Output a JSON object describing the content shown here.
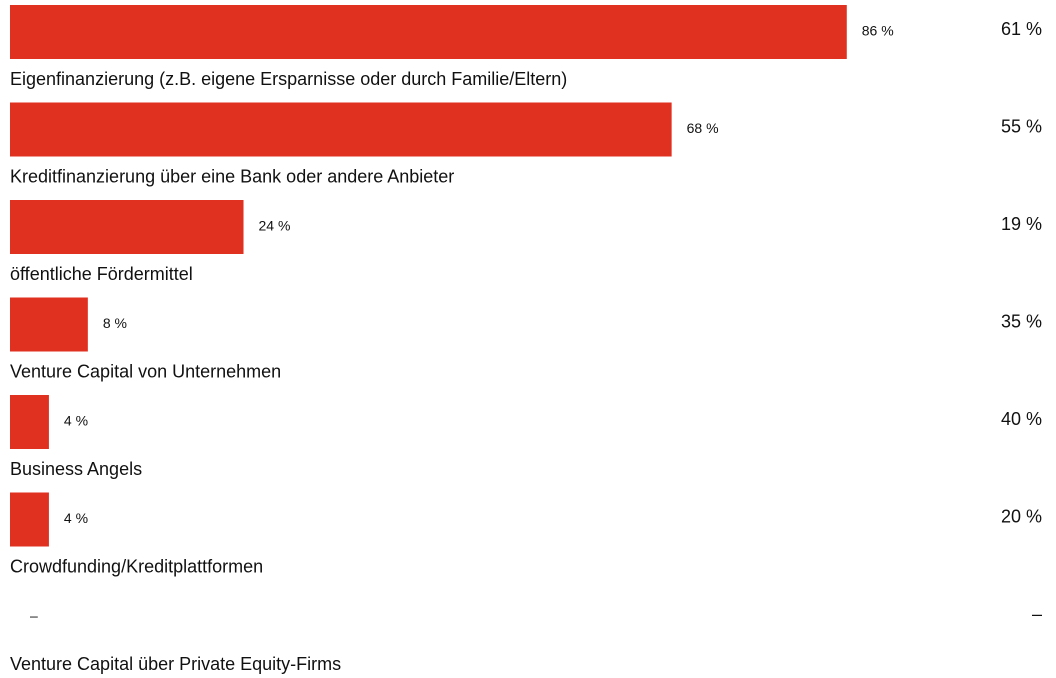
{
  "chart_data": {
    "type": "bar",
    "orientation": "horizontal",
    "color": "#e03020",
    "categories": [
      "Eigenfinanzierung (z.B. eigene Ersparnisse oder durch Familie/Eltern)",
      "Kreditfinanzierung über eine Bank oder andere Anbieter",
      "öffentliche Fördermittel",
      "Venture Capital von Unternehmen",
      "Business Angels",
      "Crowdfunding/Kreditplattformen",
      "Venture Capital über Private Equity-Firms"
    ],
    "values": [
      86,
      68,
      24,
      8,
      4,
      4,
      null
    ],
    "value_labels": [
      "86 %",
      "68 %",
      "24 %",
      "8 %",
      "4 %",
      "4 %",
      "–"
    ],
    "second_values": [
      61,
      55,
      19,
      35,
      40,
      20,
      null
    ],
    "second_value_labels": [
      "61 %",
      "55 %",
      "19 %",
      "35 %",
      "40 %",
      "20 %",
      "–"
    ],
    "xlim": [
      0,
      100
    ]
  }
}
